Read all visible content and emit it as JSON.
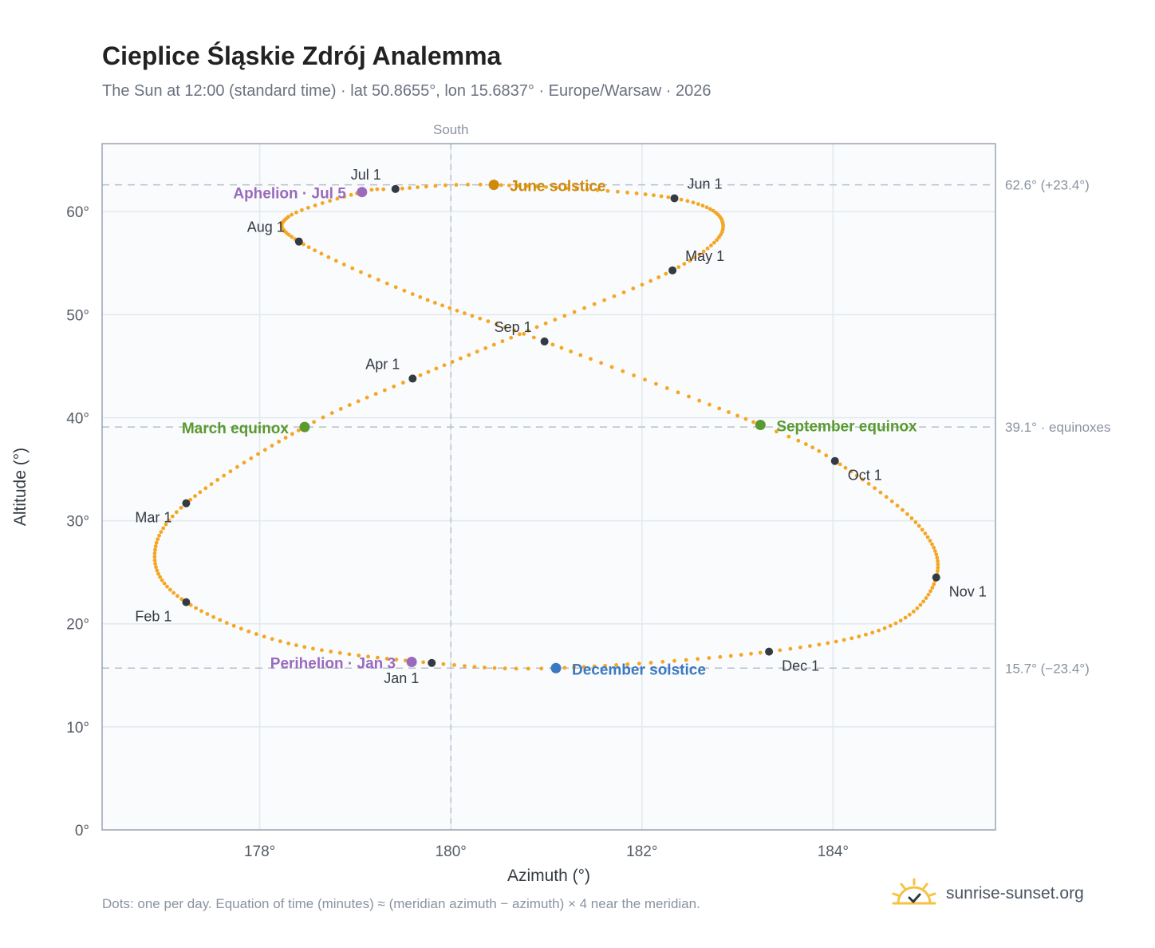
{
  "header": {
    "title": "Cieplice Śląskie Zdrój Analemma",
    "subtitle": "The Sun at 12:00 (standard time) · lat 50.8655°, lon 15.6837° · Europe/Warsaw · 2026"
  },
  "footer": {
    "footnote": "Dots: one per day. Equation of time (minutes) ≈ (meridian azimuth − azimuth) × 4 near the meridian.",
    "brand": "sunrise-sunset.org",
    "brand_icon": "sun-logo-icon"
  },
  "colors": {
    "path": "#f5a623",
    "month_marker": "#333a42",
    "solstice_june": "#d08a0a",
    "solstice_december": "#3a78c0",
    "equinox": "#5a9a2e",
    "apsis": "#9a6bbd",
    "plot_bg": "#f9fbfd",
    "frame": "#9aa4b2",
    "grid": "#e3e8ee"
  },
  "chart_data": {
    "type": "scatter",
    "title": "Cieplice Śląskie Zdrój Analemma",
    "xlabel": "Azimuth (°)",
    "ylabel": "Altitude (°)",
    "xlim": [
      176.35,
      185.7
    ],
    "ylim": [
      0,
      66.6
    ],
    "xticks": [
      178,
      180,
      182,
      184
    ],
    "yticks": [
      0,
      10,
      20,
      30,
      40,
      50,
      60
    ],
    "x_tick_suffix": "°",
    "y_tick_suffix": "°",
    "grid": true,
    "meridian": {
      "azimuth": 180,
      "label": "South"
    },
    "reference_lines": [
      {
        "altitude": 62.6,
        "label": "62.6° (+23.4°)"
      },
      {
        "altitude": 39.1,
        "label": "39.1° · equinoxes"
      },
      {
        "altitude": 15.7,
        "label": "15.7° (−23.4°)"
      }
    ],
    "series": [
      {
        "type": "month_markers",
        "points": [
          {
            "label": "Jan 1",
            "azimuth": 179.8,
            "altitude": 16.2
          },
          {
            "label": "Feb 1",
            "azimuth": 177.23,
            "altitude": 22.1
          },
          {
            "label": "Mar 1",
            "azimuth": 177.23,
            "altitude": 31.7
          },
          {
            "label": "Apr 1",
            "azimuth": 179.6,
            "altitude": 43.8
          },
          {
            "label": "May 1",
            "azimuth": 182.32,
            "altitude": 54.3
          },
          {
            "label": "Jun 1",
            "azimuth": 182.34,
            "altitude": 61.3
          },
          {
            "label": "Jul 1",
            "azimuth": 179.42,
            "altitude": 62.2
          },
          {
            "label": "Aug 1",
            "azimuth": 178.41,
            "altitude": 57.1
          },
          {
            "label": "Sep 1",
            "azimuth": 180.98,
            "altitude": 47.4
          },
          {
            "label": "Oct 1",
            "azimuth": 184.02,
            "altitude": 35.8
          },
          {
            "label": "Nov 1",
            "azimuth": 185.08,
            "altitude": 24.5
          },
          {
            "label": "Dec 1",
            "azimuth": 183.33,
            "altitude": 17.3
          }
        ]
      },
      {
        "type": "events",
        "points": [
          {
            "label": "June solstice",
            "azimuth": 180.45,
            "altitude": 62.6,
            "color_key": "solstice_june"
          },
          {
            "label": "December solstice",
            "azimuth": 181.1,
            "altitude": 15.7,
            "color_key": "solstice_december"
          },
          {
            "label": "March equinox",
            "azimuth": 178.47,
            "altitude": 39.1,
            "color_key": "equinox"
          },
          {
            "label": "September equinox",
            "azimuth": 183.24,
            "altitude": 39.3,
            "color_key": "equinox"
          },
          {
            "label": "Aphelion · Jul 5",
            "azimuth": 179.07,
            "altitude": 61.9,
            "color_key": "apsis"
          },
          {
            "label": "Perihelion · Jan 3",
            "azimuth": 179.59,
            "altitude": 16.3,
            "color_key": "apsis"
          }
        ]
      }
    ],
    "daily_path": {
      "description": "Dots: one per day",
      "anchors": [
        [
          1,
          179.8,
          16.2
        ],
        [
          17,
          178.3,
          18.1
        ],
        [
          32,
          177.23,
          22.1
        ],
        [
          46,
          176.9,
          26.5
        ],
        [
          60,
          177.23,
          31.7
        ],
        [
          79,
          178.47,
          39.1
        ],
        [
          91,
          179.6,
          43.8
        ],
        [
          106,
          180.9,
          48.8
        ],
        [
          121,
          182.32,
          54.3
        ],
        [
          136,
          182.85,
          58.5
        ],
        [
          152,
          182.34,
          61.3
        ],
        [
          172,
          180.45,
          62.6
        ],
        [
          182,
          179.42,
          62.2
        ],
        [
          186,
          179.07,
          61.9
        ],
        [
          198,
          178.3,
          59.5
        ],
        [
          213,
          178.41,
          57.1
        ],
        [
          228,
          179.6,
          52.0
        ],
        [
          244,
          180.98,
          47.4
        ],
        [
          266,
          183.24,
          39.3
        ],
        [
          274,
          184.02,
          35.8
        ],
        [
          290,
          184.9,
          29.5
        ],
        [
          305,
          185.08,
          24.5
        ],
        [
          320,
          184.6,
          19.8
        ],
        [
          335,
          183.33,
          17.3
        ],
        [
          355,
          181.1,
          15.7
        ],
        [
          366,
          179.8,
          16.2
        ]
      ]
    }
  }
}
